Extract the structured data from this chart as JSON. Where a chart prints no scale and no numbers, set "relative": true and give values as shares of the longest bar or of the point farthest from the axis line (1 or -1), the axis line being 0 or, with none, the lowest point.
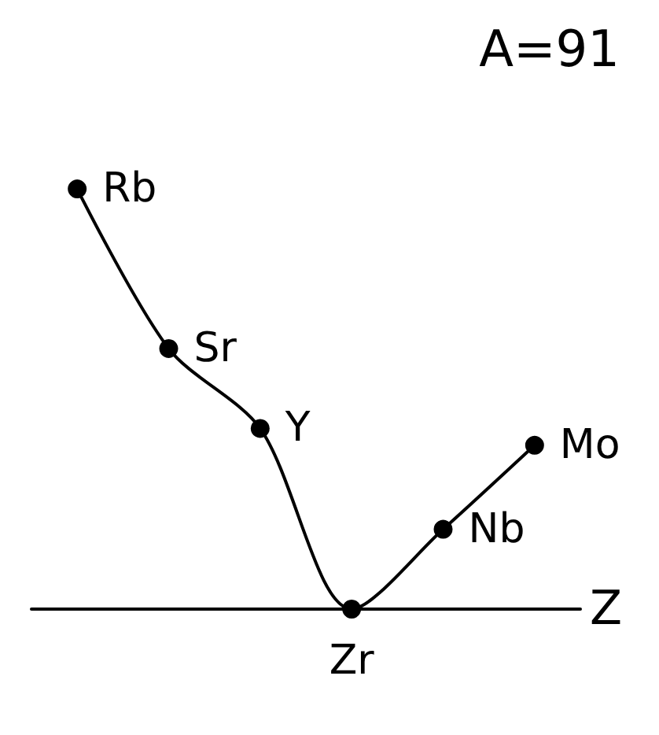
{
  "chart_data": {
    "type": "line",
    "title": "A=91",
    "xlabel": "Z",
    "relative": true,
    "categories": [
      null,
      null,
      null,
      null,
      null,
      null
    ],
    "series": [
      {
        "color": "#000000",
        "values": [
          1,
          0.62,
          0.43,
          0,
          0.19,
          0.39
        ]
      }
    ],
    "annotations": [
      "Rb",
      "Sr",
      "Y",
      "Zr",
      "Nb",
      "Mo"
    ],
    "marker": "circle",
    "line_style": "solid",
    "grid": false
  }
}
